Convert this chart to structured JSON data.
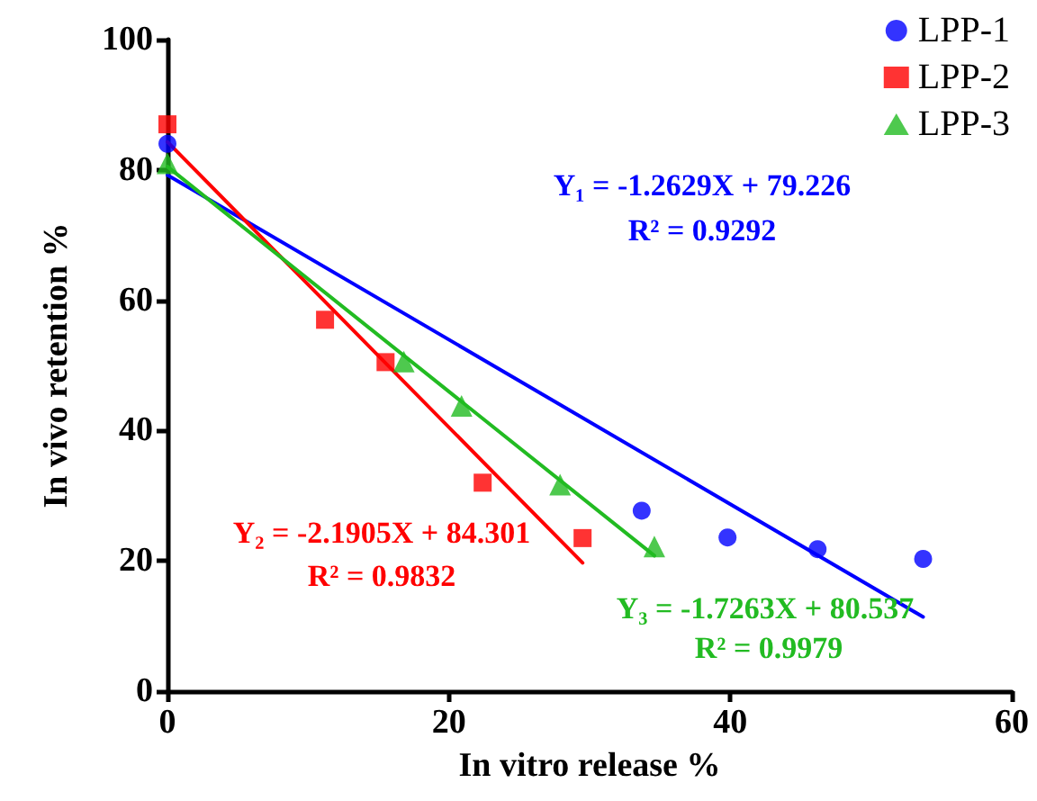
{
  "chart_data": {
    "type": "scatter",
    "xlabel": "In vitro release %",
    "ylabel": "In vivo retention %",
    "xlim": [
      0,
      60
    ],
    "xticks": [
      0,
      20,
      40,
      60
    ],
    "ylim": [
      0,
      100
    ],
    "yticks": [
      0,
      20,
      40,
      60,
      80,
      100
    ],
    "grid": false,
    "legend": "top right",
    "series": [
      {
        "name": "LPP-1",
        "color": "#0000ff",
        "marker": "circle",
        "x": [
          0,
          33.7,
          39.8,
          46.2,
          53.7
        ],
        "values": [
          84,
          27.7,
          23.6,
          21.8,
          20.3
        ]
      },
      {
        "name": "LPP-2",
        "color": "#ff0000",
        "marker": "square",
        "x": [
          0,
          11.2,
          15.5,
          22.4,
          29.5
        ],
        "values": [
          87,
          57,
          50.5,
          32,
          23.5
        ]
      },
      {
        "name": "LPP-3",
        "color": "#22bb22",
        "marker": "triangle",
        "x": [
          0,
          16.8,
          20.9,
          27.9,
          34.6
        ],
        "values": [
          81,
          50.6,
          43.8,
          31.7,
          22.2
        ]
      },
      {
        "type": "line",
        "color": "#0000ff",
        "marker": "none",
        "x": [
          0,
          53.7
        ],
        "values": [
          79.2,
          11.4
        ]
      },
      {
        "type": "line",
        "color": "#ff0000",
        "marker": "none",
        "x": [
          0,
          29.5
        ],
        "values": [
          84.3,
          19.7
        ]
      },
      {
        "type": "line",
        "color": "#22bb22",
        "marker": "none",
        "x": [
          0,
          34.6
        ],
        "values": [
          80.5,
          20.8
        ]
      }
    ],
    "annotations": [
      "Y₁ = -1.2629X + 79.226",
      "R² = 0.9292",
      "Y₂ = -2.1905X + 84.301",
      "R² = 0.9832",
      "Y₃ = -1.7263X + 80.537",
      "R² = 0.9979"
    ]
  }
}
